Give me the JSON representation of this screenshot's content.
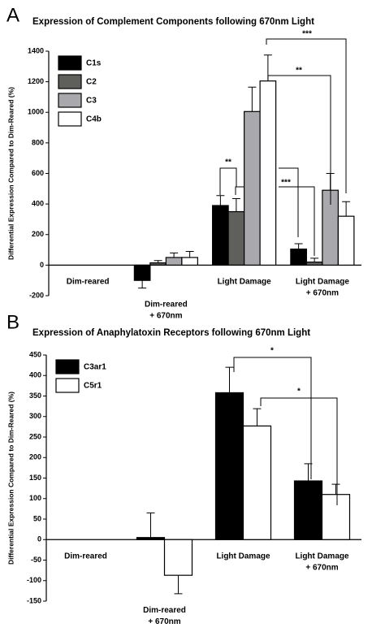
{
  "chart_data": [
    {
      "type": "bar",
      "panel_label": "A",
      "title": "Expression of Complement Components following 670nm Light",
      "ylabel": "Differential Expression Compared to Dim-Reared (%)",
      "categories": [
        "Dim-reared",
        "Dim-reared\n+ 670nm",
        "Light Damage",
        "Light Damage\n+ 670nm"
      ],
      "series": [
        {
          "name": "C1s",
          "color": "#000000",
          "values": [
            0,
            -100,
            390,
            105
          ],
          "errors": [
            0,
            50,
            65,
            35
          ]
        },
        {
          "name": "C2",
          "color": "#5f5f5b",
          "values": [
            0,
            15,
            350,
            20
          ],
          "errors": [
            0,
            15,
            85,
            25
          ]
        },
        {
          "name": "C3",
          "color": "#a9a9ad",
          "values": [
            0,
            50,
            1005,
            490
          ],
          "errors": [
            0,
            30,
            160,
            110
          ]
        },
        {
          "name": "C4b",
          "color": "#ffffff",
          "values": [
            0,
            50,
            1205,
            320
          ],
          "errors": [
            0,
            40,
            170,
            95
          ]
        }
      ],
      "ylim": [
        -200,
        1400
      ],
      "yticks": [
        -200,
        0,
        200,
        400,
        600,
        800,
        1000,
        1200,
        1400
      ],
      "annotations": [
        "***",
        "**",
        "**",
        "***"
      ]
    },
    {
      "type": "bar",
      "panel_label": "B",
      "title": "Expression of Anaphylatoxin Receptors following 670nm Light",
      "ylabel": "Differential Expression Compared to Dim-Reared (%)",
      "categories": [
        "Dim-reared",
        "Dim-reared\n+ 670nm",
        "Light Damage",
        "Light Damage\n+ 670nm"
      ],
      "series": [
        {
          "name": "C3ar1",
          "color": "#000000",
          "values": [
            0,
            5,
            358,
            143
          ],
          "errors": [
            0,
            60,
            62,
            42
          ]
        },
        {
          "name": "C5r1",
          "color": "#ffffff",
          "values": [
            0,
            -87,
            277,
            110
          ],
          "errors": [
            0,
            45,
            42,
            25
          ]
        }
      ],
      "ylim": [
        -150,
        450
      ],
      "yticks": [
        -150,
        -100,
        -50,
        0,
        50,
        100,
        150,
        200,
        250,
        300,
        350,
        400,
        450
      ],
      "annotations": [
        "*",
        "*"
      ]
    }
  ]
}
